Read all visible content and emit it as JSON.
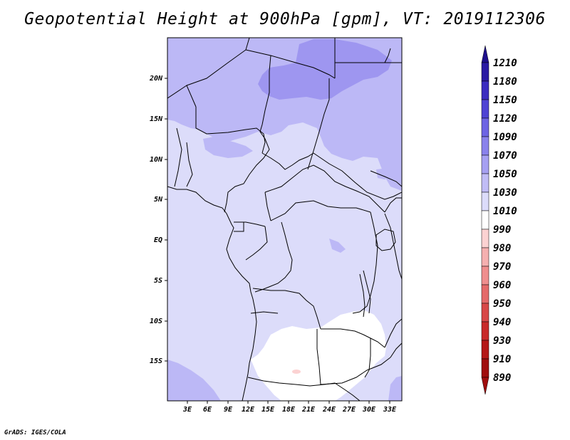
{
  "title": "Geopotential Height at 900hPa [gpm], VT: 2019112306",
  "credit": "GrADS: IGES/COLA",
  "map": {
    "lon_ticks": [
      "3E",
      "6E",
      "9E",
      "12E",
      "15E",
      "18E",
      "21E",
      "24E",
      "27E",
      "30E",
      "33E"
    ],
    "lat_ticks": [
      "20N",
      "15N",
      "10N",
      "5N",
      "EQ",
      "5S",
      "10S",
      "15S"
    ],
    "fill_colors": {
      "990-1010": "#ffffff",
      "1010-1030": "#dcdcfa",
      "1030-1050": "#bcb8f6",
      "1050-1070": "#9e96f0",
      "980-990": "#fbd2d2"
    }
  },
  "colorbar": {
    "labels": [
      "1210",
      "1180",
      "1150",
      "1120",
      "1090",
      "1070",
      "1050",
      "1030",
      "1010",
      "990",
      "980",
      "970",
      "960",
      "950",
      "940",
      "930",
      "910",
      "890"
    ],
    "colors": [
      "#1e0f8c",
      "#2a1aa4",
      "#3b2cc0",
      "#4f43d4",
      "#6d64e4",
      "#8a82ec",
      "#a6a0f2",
      "#c0bcf6",
      "#dcdcfa",
      "#ffffff",
      "#fbd2d2",
      "#f5b0b0",
      "#ef8e8e",
      "#e56a6a",
      "#d84848",
      "#c82a2a",
      "#b41818",
      "#a00e0e"
    ]
  }
}
